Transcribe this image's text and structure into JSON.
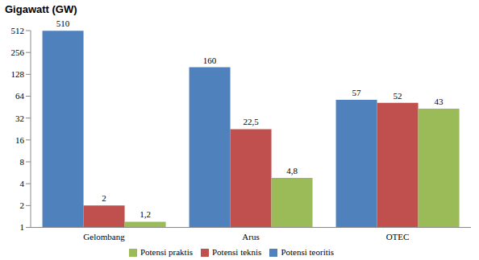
{
  "chart_data": {
    "type": "bar",
    "ylabel": "Gigawatt (GW)",
    "categories": [
      "Gelombang",
      "Arus",
      "OTEC"
    ],
    "series": [
      {
        "name": "Potensi teoritis",
        "color": "#4f81bd",
        "values": [
          510,
          160,
          57
        ],
        "value_labels": [
          "510",
          "160",
          "57"
        ]
      },
      {
        "name": "Potensi teknis",
        "color": "#c0504d",
        "values": [
          2,
          22.5,
          52
        ],
        "value_labels": [
          "2",
          "22,5",
          "52"
        ]
      },
      {
        "name": "Potensi praktis",
        "color": "#9bbb59",
        "values": [
          1.2,
          4.8,
          43
        ],
        "value_labels": [
          "1,2",
          "4,8",
          "43"
        ]
      }
    ],
    "log": "y",
    "ylim": [
      1,
      512
    ],
    "yticks": [
      1,
      2,
      4,
      8,
      16,
      32,
      64,
      128,
      256,
      512
    ],
    "data_labels": true,
    "legend": "bottom"
  }
}
